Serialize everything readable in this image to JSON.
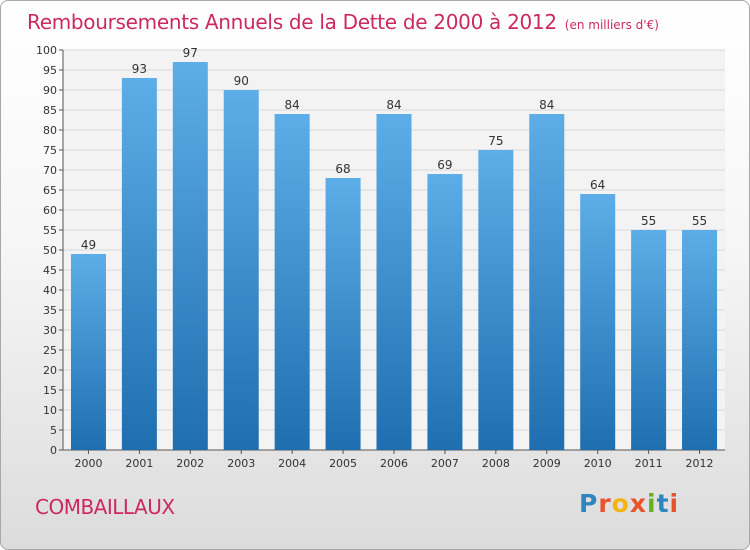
{
  "header": {
    "title": "Remboursements Annuels de la Dette de 2000 à 2012",
    "unit": "(en milliers d'€)"
  },
  "footer": {
    "commune": "COMBAILLAUX",
    "brand": "Proxiti",
    "brand_colors": [
      "#2e86c1",
      "#e8532e",
      "#f4b40f",
      "#e8532e",
      "#6ab023",
      "#2e86c1",
      "#e8532e"
    ]
  },
  "colors": {
    "title": "#cc2a5f",
    "bar_top": "#5dade8",
    "bar_bottom": "#1f6fb0",
    "grid": "#d8d8d8"
  },
  "chart_data": {
    "type": "bar",
    "title": "Remboursements Annuels de la Dette de 2000 à 2012",
    "subtitle": "(en milliers d'€)",
    "categories": [
      "2000",
      "2001",
      "2002",
      "2003",
      "2004",
      "2005",
      "2006",
      "2007",
      "2008",
      "2009",
      "2010",
      "2011",
      "2012"
    ],
    "values": [
      49,
      93,
      97,
      90,
      84,
      68,
      84,
      69,
      75,
      84,
      64,
      55,
      55
    ],
    "ylim": [
      0,
      100
    ],
    "ytick_step": 5,
    "grid": true,
    "data_labels": true
  }
}
